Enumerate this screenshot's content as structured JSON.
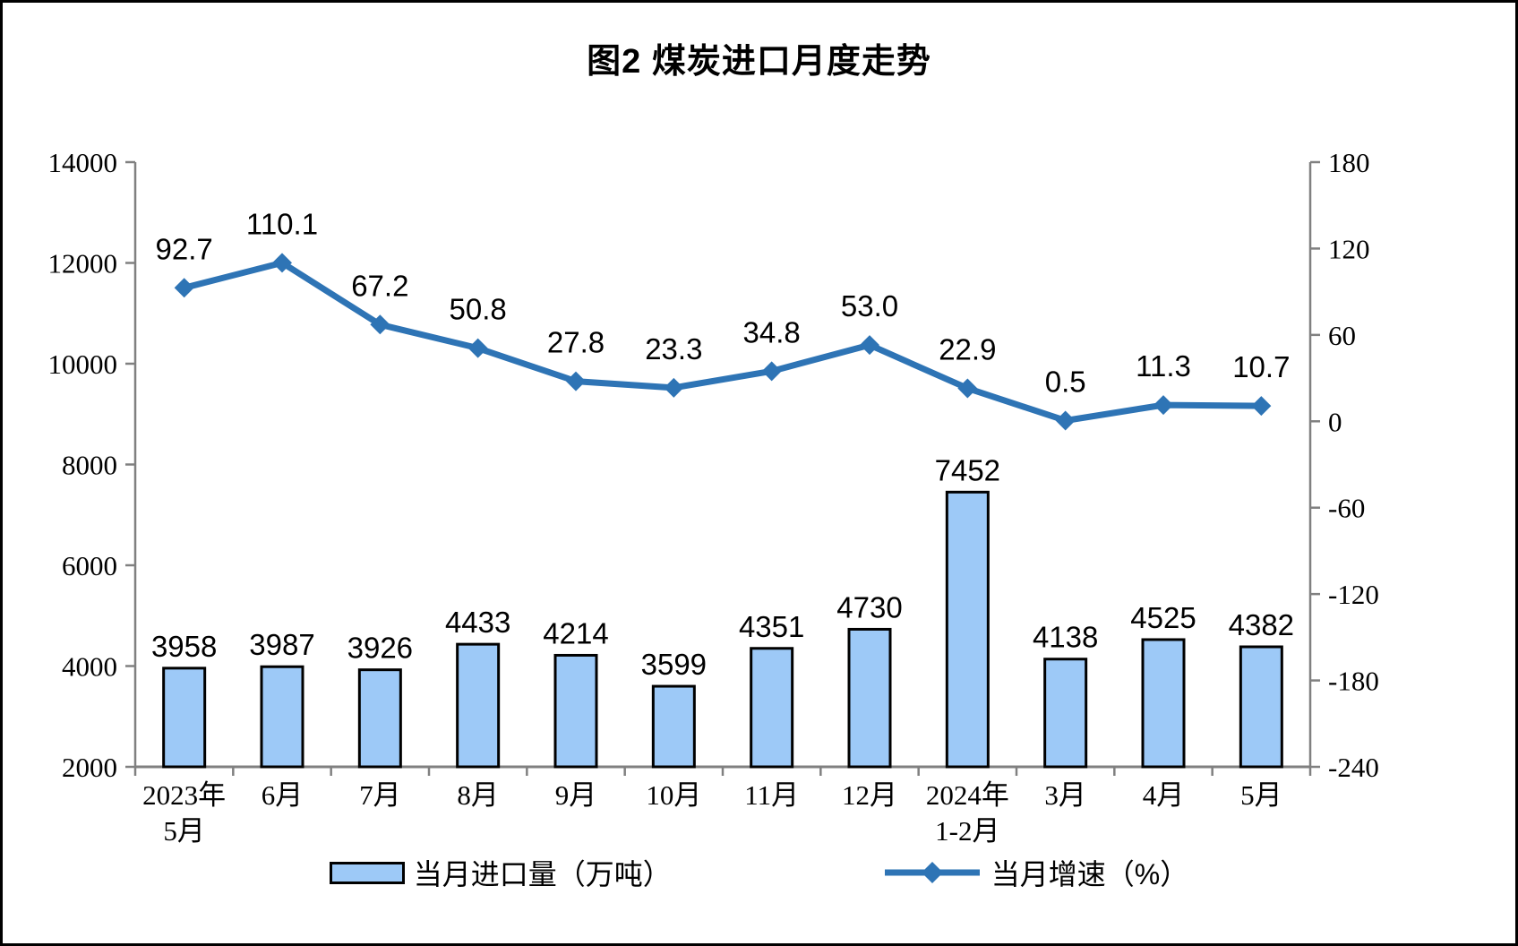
{
  "chart_data": {
    "type": "combo",
    "title": "图2 煤炭进口月度走势",
    "categories": [
      [
        "2023年",
        "5月"
      ],
      [
        "6月"
      ],
      [
        "7月"
      ],
      [
        "8月"
      ],
      [
        "9月"
      ],
      [
        "10月"
      ],
      [
        "11月"
      ],
      [
        "12月"
      ],
      [
        "2024年",
        "1-2月"
      ],
      [
        "3月"
      ],
      [
        "4月"
      ],
      [
        "5月"
      ]
    ],
    "series": [
      {
        "name": "当月进口量（万吨）",
        "type": "bar",
        "axis": "left",
        "decimals": 0,
        "values": [
          3958,
          3987,
          3926,
          4433,
          4214,
          3599,
          4351,
          4730,
          7452,
          4138,
          4525,
          4382
        ]
      },
      {
        "name": "当月增速（%）",
        "type": "line",
        "axis": "right",
        "decimals": 1,
        "values": [
          92.7,
          110.1,
          67.2,
          50.8,
          27.8,
          23.3,
          34.8,
          53.0,
          22.9,
          0.5,
          11.3,
          10.7
        ]
      }
    ],
    "left_axis": {
      "min": 2000,
      "max": 14000,
      "step": 2000,
      "tick_labels": [
        "2000",
        "4000",
        "6000",
        "8000",
        "10000",
        "12000",
        "14000"
      ]
    },
    "right_axis": {
      "min": -240,
      "max": 180,
      "step": 60,
      "tick_labels": [
        "-240",
        "-180",
        "-120",
        "-60",
        "0",
        "60",
        "120",
        "180"
      ]
    },
    "legend_position": "bottom",
    "grid": false
  },
  "colors": {
    "bar_fill": "#9DC9F7",
    "bar_border": "#000000",
    "line": "#2E74B5",
    "axis_line": "#808080",
    "text": "#000000",
    "background": "#FFFFFF",
    "frame_border": "#000000"
  }
}
